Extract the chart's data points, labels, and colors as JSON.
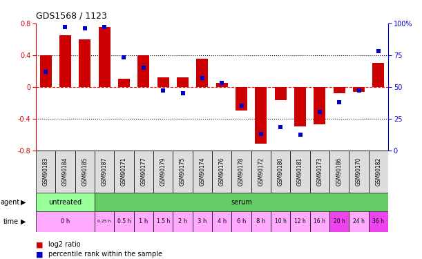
{
  "title": "GDS1568 / 1123",
  "samples": [
    "GSM90183",
    "GSM90184",
    "GSM90185",
    "GSM90187",
    "GSM90171",
    "GSM90177",
    "GSM90179",
    "GSM90175",
    "GSM90174",
    "GSM90176",
    "GSM90178",
    "GSM90172",
    "GSM90180",
    "GSM90181",
    "GSM90173",
    "GSM90186",
    "GSM90170",
    "GSM90182"
  ],
  "log2_ratio": [
    0.4,
    0.65,
    0.6,
    0.75,
    0.1,
    0.4,
    0.12,
    0.12,
    0.35,
    0.05,
    -0.3,
    -0.72,
    -0.17,
    -0.5,
    -0.47,
    -0.08,
    -0.06,
    0.3
  ],
  "percentile": [
    62,
    97,
    96,
    97,
    73,
    65,
    47,
    45,
    57,
    53,
    35,
    13,
    18,
    12,
    30,
    38,
    47,
    78
  ],
  "bar_color": "#cc0000",
  "dot_color": "#0000cc",
  "ylim": [
    -0.8,
    0.8
  ],
  "y2lim": [
    0,
    100
  ],
  "yticks": [
    -0.8,
    -0.4,
    0.0,
    0.4,
    0.8
  ],
  "y2ticks": [
    0,
    25,
    50,
    75,
    100
  ],
  "y2ticklabels": [
    "0",
    "25",
    "50",
    "75",
    "100%"
  ],
  "agent_color_untreated": "#99ff99",
  "agent_color_serum": "#66cc66",
  "time_color_light": "#ffaaff",
  "time_color_dark": "#ee44ee",
  "bar_color_hex": "#cc0000",
  "dot_color_hex": "#0000cc"
}
